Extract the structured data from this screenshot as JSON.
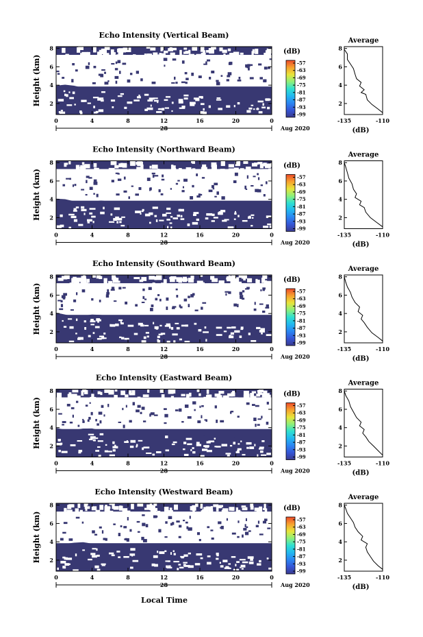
{
  "figure": {
    "xlabel": "Local Time",
    "date_label": "Aug 2020",
    "day_label": "28",
    "ylabel": "Height (km)",
    "colorbar_unit": "(dB)",
    "average_title": "Average",
    "average_xlabel": "(dB)"
  },
  "colors": {
    "fill": "#383872",
    "background": "#ffffff",
    "colorbar": [
      "#3a3a8e",
      "#3555d6",
      "#2b86f2",
      "#22b8f0",
      "#2fe0d0",
      "#8ef07a",
      "#e8e43a",
      "#f7a12e",
      "#ec4a2a"
    ]
  },
  "chart_data": [
    {
      "type": "heatmap",
      "title": "Echo Intensity (Vertical Beam)",
      "x_ticks": [
        "0",
        "4",
        "8",
        "12",
        "16",
        "20",
        "0"
      ],
      "y_ticks": [
        "2",
        "4",
        "6",
        "8"
      ],
      "xlim": [
        0,
        24
      ],
      "ylim": [
        0.8,
        8.2
      ],
      "colorbar_ticks": [
        "-57",
        "-63",
        "-69",
        "-75",
        "-81",
        "-87",
        "-93",
        "-99"
      ],
      "average": {
        "xlim": [
          -135,
          -110
        ],
        "ylim": [
          0.8,
          8.2
        ],
        "x_ticks": [
          "-135",
          "-110"
        ],
        "y_ticks": [
          "2",
          "4",
          "6",
          "8"
        ],
        "profile": [
          [
            -110,
            1.0
          ],
          [
            -113,
            1.4
          ],
          [
            -117,
            1.9
          ],
          [
            -120,
            2.4
          ],
          [
            -121,
            3.0
          ],
          [
            -124,
            3.2
          ],
          [
            -122,
            3.5
          ],
          [
            -125,
            3.9
          ],
          [
            -124,
            4.3
          ],
          [
            -127,
            4.7
          ],
          [
            -128,
            5.2
          ],
          [
            -129,
            5.8
          ],
          [
            -131,
            6.3
          ],
          [
            -133,
            6.8
          ],
          [
            -133,
            7.4
          ],
          [
            -135,
            7.9
          ]
        ]
      }
    },
    {
      "type": "heatmap",
      "title": "Echo Intensity (Northward Beam)",
      "x_ticks": [
        "0",
        "4",
        "8",
        "12",
        "16",
        "20",
        "0"
      ],
      "y_ticks": [
        "2",
        "4",
        "6",
        "8"
      ],
      "xlim": [
        0,
        24
      ],
      "ylim": [
        0.8,
        8.2
      ],
      "colorbar_ticks": [
        "-57",
        "-63",
        "-69",
        "-75",
        "-81",
        "-87",
        "-93",
        "-99"
      ],
      "average": {
        "xlim": [
          -135,
          -110
        ],
        "ylim": [
          0.8,
          8.2
        ],
        "x_ticks": [
          "-135",
          "-110"
        ],
        "y_ticks": [
          "2",
          "4",
          "6",
          "8"
        ],
        "profile": [
          [
            -110,
            1.0
          ],
          [
            -114,
            1.5
          ],
          [
            -118,
            2.0
          ],
          [
            -121,
            2.6
          ],
          [
            -122,
            3.1
          ],
          [
            -125,
            3.4
          ],
          [
            -124,
            3.8
          ],
          [
            -128,
            4.2
          ],
          [
            -127,
            4.6
          ],
          [
            -129,
            5.1
          ],
          [
            -130,
            5.7
          ],
          [
            -132,
            6.3
          ],
          [
            -133,
            6.9
          ],
          [
            -134,
            7.5
          ],
          [
            -135,
            8.0
          ]
        ]
      }
    },
    {
      "type": "heatmap",
      "title": "Echo Intensity (Southward Beam)",
      "x_ticks": [
        "0",
        "4",
        "8",
        "12",
        "16",
        "20",
        "0"
      ],
      "y_ticks": [
        "2",
        "4",
        "6",
        "8"
      ],
      "xlim": [
        0,
        24
      ],
      "ylim": [
        0.8,
        8.2
      ],
      "colorbar_ticks": [
        "-57",
        "-63",
        "-69",
        "-75",
        "-81",
        "-87",
        "-93",
        "-99"
      ],
      "average": {
        "xlim": [
          -135,
          -110
        ],
        "ylim": [
          0.8,
          8.2
        ],
        "x_ticks": [
          "-135",
          "-110"
        ],
        "y_ticks": [
          "2",
          "4",
          "6",
          "8"
        ],
        "profile": [
          [
            -110,
            1.0
          ],
          [
            -113,
            1.4
          ],
          [
            -117,
            1.9
          ],
          [
            -120,
            2.5
          ],
          [
            -122,
            3.0
          ],
          [
            -124,
            3.4
          ],
          [
            -123,
            3.8
          ],
          [
            -126,
            4.2
          ],
          [
            -125,
            4.7
          ],
          [
            -128,
            5.2
          ],
          [
            -130,
            5.8
          ],
          [
            -131,
            6.3
          ],
          [
            -133,
            6.9
          ],
          [
            -134,
            7.4
          ],
          [
            -135,
            8.0
          ]
        ]
      }
    },
    {
      "type": "heatmap",
      "title": "Echo Intensity (Eastward Beam)",
      "x_ticks": [
        "0",
        "4",
        "8",
        "12",
        "16",
        "20",
        "0"
      ],
      "y_ticks": [
        "2",
        "4",
        "6",
        "8"
      ],
      "xlim": [
        0,
        24
      ],
      "ylim": [
        0.8,
        8.2
      ],
      "colorbar_ticks": [
        "-57",
        "-63",
        "-69",
        "-75",
        "-81",
        "-87",
        "-93",
        "-99"
      ],
      "average": {
        "xlim": [
          -135,
          -110
        ],
        "ylim": [
          0.8,
          8.2
        ],
        "x_ticks": [
          "-135",
          "-110"
        ],
        "y_ticks": [
          "2",
          "4",
          "6",
          "8"
        ],
        "profile": [
          [
            -110,
            1.0
          ],
          [
            -113,
            1.5
          ],
          [
            -116,
            2.0
          ],
          [
            -119,
            2.5
          ],
          [
            -121,
            3.0
          ],
          [
            -123,
            3.4
          ],
          [
            -122,
            3.8
          ],
          [
            -125,
            4.2
          ],
          [
            -124,
            4.6
          ],
          [
            -127,
            5.1
          ],
          [
            -129,
            5.7
          ],
          [
            -131,
            6.3
          ],
          [
            -132,
            6.9
          ],
          [
            -134,
            7.5
          ],
          [
            -135,
            8.0
          ]
        ]
      }
    },
    {
      "type": "heatmap",
      "title": "Echo Intensity (Westward Beam)",
      "x_ticks": [
        "0",
        "4",
        "8",
        "12",
        "16",
        "20",
        "0"
      ],
      "y_ticks": [
        "2",
        "4",
        "6",
        "8"
      ],
      "xlim": [
        0,
        24
      ],
      "ylim": [
        0.8,
        8.2
      ],
      "colorbar_ticks": [
        "-57",
        "-63",
        "-69",
        "-75",
        "-81",
        "-87",
        "-93",
        "-99"
      ],
      "average": {
        "xlim": [
          -135,
          -110
        ],
        "ylim": [
          0.8,
          8.2
        ],
        "x_ticks": [
          "-135",
          "-110"
        ],
        "y_ticks": [
          "2",
          "4",
          "6",
          "8"
        ],
        "profile": [
          [
            -110,
            1.0
          ],
          [
            -113,
            1.4
          ],
          [
            -116,
            1.9
          ],
          [
            -118,
            2.4
          ],
          [
            -120,
            2.9
          ],
          [
            -121,
            3.4
          ],
          [
            -120,
            3.8
          ],
          [
            -124,
            4.2
          ],
          [
            -123,
            4.6
          ],
          [
            -126,
            5.1
          ],
          [
            -128,
            5.6
          ],
          [
            -129,
            6.1
          ],
          [
            -131,
            6.6
          ],
          [
            -133,
            7.1
          ],
          [
            -134,
            7.6
          ],
          [
            -135,
            8.0
          ]
        ]
      }
    }
  ]
}
